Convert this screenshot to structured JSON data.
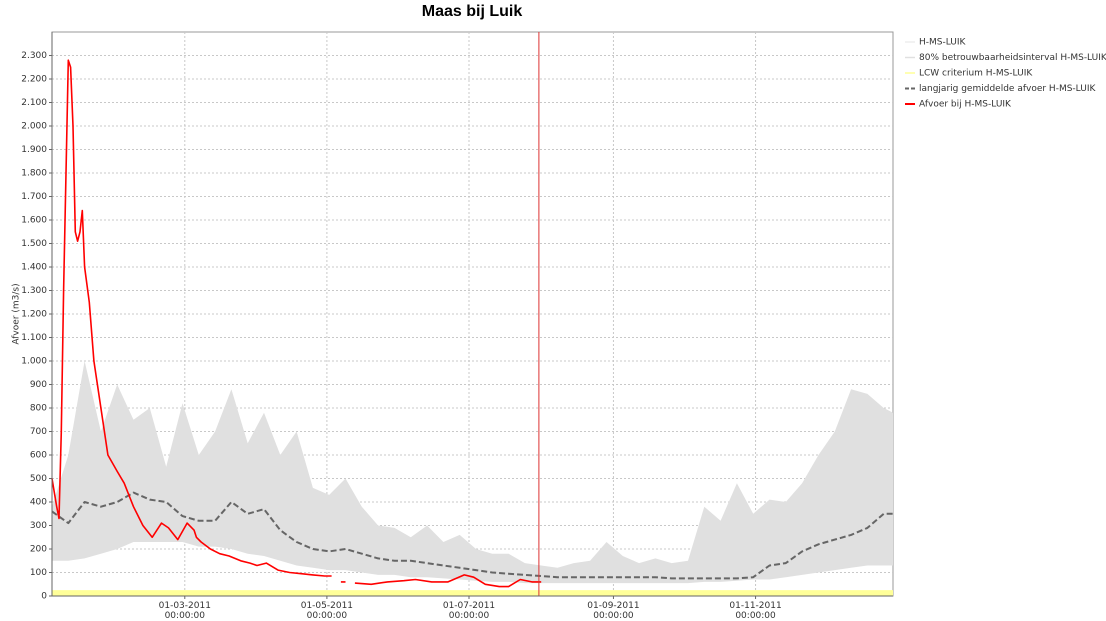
{
  "chart_data": {
    "type": "line",
    "title": "Maas bij Luik",
    "y_label": "Afvoer (m3/s)",
    "xlim": [
      "2011-01-03",
      "2011-12-30"
    ],
    "xticks": [
      {
        "value": "2011-03-01",
        "label": "01-03-2011 00:00:00"
      },
      {
        "value": "2011-05-01",
        "label": "01-05-2011 00:00:00"
      },
      {
        "value": "2011-07-01",
        "label": "01-07-2011 00:00:00"
      },
      {
        "value": "2011-09-01",
        "label": "01-09-2011 00:00:00"
      },
      {
        "value": "2011-11-01",
        "label": "01-11-2011 00:00:00"
      }
    ],
    "ylim": [
      0,
      2400
    ],
    "yticks": [
      0,
      100,
      200,
      300,
      400,
      500,
      600,
      700,
      800,
      900,
      {
        "value": 1000,
        "label": "1.000"
      },
      {
        "value": 1100,
        "label": "1.100"
      },
      {
        "value": 1200,
        "label": "1.200"
      },
      {
        "value": 1300,
        "label": "1.300"
      },
      {
        "value": 1400,
        "label": "1.400"
      },
      {
        "value": 1500,
        "label": "1.500"
      },
      {
        "value": 1600,
        "label": "1.600"
      },
      {
        "value": 1700,
        "label": "1.700"
      },
      {
        "value": 1800,
        "label": "1.800"
      },
      {
        "value": 1900,
        "label": "1.900"
      },
      {
        "value": 2000,
        "label": "2.000"
      },
      {
        "value": 2100,
        "label": "2.100"
      },
      {
        "value": 2200,
        "label": "2.200"
      },
      {
        "value": 2300,
        "label": "2.300"
      }
    ],
    "grid": true,
    "legend": "right",
    "marker_x": "2011-07-31",
    "marker_color": "#dd3333",
    "x": [
      "2011-01-03",
      "2011-01-10",
      "2011-01-17",
      "2011-01-24",
      "2011-01-31",
      "2011-02-07",
      "2011-02-14",
      "2011-02-21",
      "2011-02-28",
      "2011-03-07",
      "2011-03-14",
      "2011-03-21",
      "2011-03-28",
      "2011-04-04",
      "2011-04-11",
      "2011-04-18",
      "2011-04-25",
      "2011-05-02",
      "2011-05-09",
      "2011-05-16",
      "2011-05-23",
      "2011-05-30",
      "2011-06-06",
      "2011-06-13",
      "2011-06-20",
      "2011-06-27",
      "2011-07-04",
      "2011-07-11",
      "2011-07-18",
      "2011-07-25",
      "2011-08-01",
      "2011-08-08",
      "2011-08-15",
      "2011-08-22",
      "2011-08-29",
      "2011-09-05",
      "2011-09-12",
      "2011-09-19",
      "2011-09-26",
      "2011-10-03",
      "2011-10-10",
      "2011-10-17",
      "2011-10-24",
      "2011-10-31",
      "2011-11-07",
      "2011-11-14",
      "2011-11-21",
      "2011-11-28",
      "2011-12-05",
      "2011-12-12",
      "2011-12-19",
      "2011-12-26",
      "2011-12-30"
    ],
    "series": [
      {
        "name": "H-MS-LUIK",
        "color": "#eeeeee"
      },
      {
        "name": "80% betrouwbaarheidsinterval H-MS-LUIK",
        "color": "#e0e0e0",
        "type": "band",
        "values": [
          380,
          600,
          1000,
          700,
          900,
          750,
          800,
          550,
          820,
          600,
          700,
          880,
          650,
          780,
          600,
          700,
          460,
          430,
          500,
          380,
          300,
          290,
          250,
          300,
          230,
          260,
          200,
          180,
          180,
          140,
          130,
          120,
          140,
          150,
          230,
          170,
          140,
          160,
          140,
          150,
          380,
          320,
          480,
          350,
          410,
          400,
          480,
          600,
          700,
          880,
          860,
          800,
          780
        ],
        "lower": [
          150,
          150,
          160,
          180,
          200,
          230,
          230,
          230,
          230,
          210,
          210,
          200,
          180,
          170,
          150,
          130,
          120,
          110,
          110,
          100,
          90,
          90,
          80,
          80,
          75,
          70,
          65,
          60,
          60,
          55,
          55,
          55,
          55,
          55,
          55,
          55,
          55,
          55,
          55,
          55,
          60,
          60,
          65,
          70,
          70,
          80,
          90,
          100,
          110,
          120,
          130,
          130,
          130
        ]
      },
      {
        "name": "LCW criterium H-MS-LUIK",
        "color": "#ffff99",
        "type": "area",
        "x": [
          "2011-01-03",
          "2011-12-30"
        ],
        "values": [
          25,
          25
        ]
      },
      {
        "name": "langjarig gemiddelde afvoer H-MS-LUIK",
        "color": "#666666",
        "type": "line",
        "dash": true,
        "values": [
          360,
          310,
          400,
          380,
          400,
          440,
          410,
          400,
          340,
          320,
          320,
          400,
          350,
          370,
          280,
          230,
          200,
          190,
          200,
          180,
          160,
          150,
          150,
          140,
          130,
          120,
          110,
          100,
          95,
          90,
          85,
          80,
          80,
          80,
          80,
          80,
          80,
          80,
          75,
          75,
          75,
          75,
          75,
          80,
          130,
          140,
          190,
          220,
          240,
          260,
          290,
          350,
          350
        ]
      },
      {
        "name": "Afvoer bij H-MS-LUIK",
        "color": "#ff0000",
        "type": "line",
        "x": [
          "2011-01-03",
          "2011-01-05",
          "2011-01-06",
          "2011-01-07",
          "2011-01-08",
          "2011-01-09",
          "2011-01-10",
          "2011-01-11",
          "2011-01-12",
          "2011-01-13",
          "2011-01-14",
          "2011-01-15",
          "2011-01-16",
          "2011-01-17",
          "2011-01-19",
          "2011-01-21",
          "2011-01-24",
          "2011-01-27",
          "2011-01-31",
          "2011-02-03",
          "2011-02-07",
          "2011-02-11",
          "2011-02-15",
          "2011-02-19",
          "2011-02-22",
          "2011-02-26",
          "2011-03-02",
          "2011-03-05",
          "2011-03-06",
          "2011-03-08",
          "2011-03-12",
          "2011-03-16",
          "2011-03-20",
          "2011-03-25",
          "2011-03-29",
          "2011-04-01",
          "2011-04-05",
          "2011-04-10",
          "2011-04-15",
          "2011-04-20",
          "2011-04-25",
          "2011-04-30",
          "2011-05-03",
          "2011-05-04",
          "2011-05-07",
          "2011-05-09",
          "2011-05-10",
          "2011-05-13",
          "2011-05-20",
          "2011-05-27",
          "2011-06-03",
          "2011-06-08",
          "2011-06-15",
          "2011-06-22",
          "2011-06-29",
          "2011-07-03",
          "2011-07-08",
          "2011-07-14",
          "2011-07-18",
          "2011-07-23",
          "2011-07-28",
          "2011-08-01"
        ],
        "values": [
          500,
          380,
          330,
          700,
          1300,
          1800,
          2280,
          2250,
          2000,
          1550,
          1510,
          1550,
          1640,
          1400,
          1250,
          1000,
          800,
          600,
          530,
          480,
          380,
          300,
          250,
          310,
          290,
          240,
          310,
          280,
          250,
          230,
          200,
          180,
          170,
          150,
          140,
          130,
          140,
          110,
          100,
          95,
          90,
          85,
          85,
          null,
          60,
          60,
          null,
          55,
          50,
          60,
          65,
          70,
          60,
          60,
          90,
          80,
          50,
          40,
          40,
          70,
          60,
          60
        ]
      }
    ]
  }
}
